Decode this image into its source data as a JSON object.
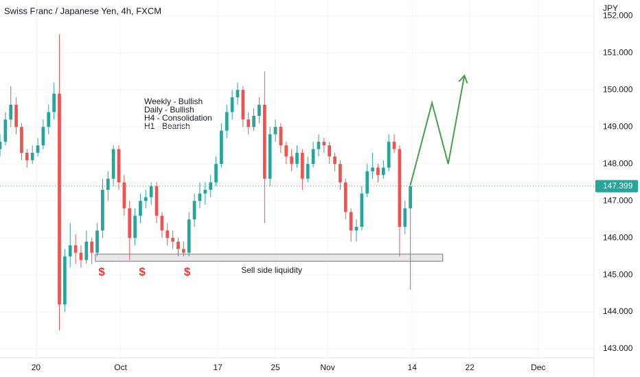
{
  "chart_data": {
    "type": "candlestick",
    "title": "Swiss Franc / Japanese Yen, 4h, FXCM",
    "currency": "JPY",
    "up_color": "#26a69a",
    "down_color": "#ef5350",
    "grid": true,
    "xlim": [
      0,
      330
    ],
    "ylim": [
      142.76,
      152.43
    ],
    "yticks": [
      {
        "value": 143,
        "label": "143.000"
      },
      {
        "value": 144,
        "label": "144.000"
      },
      {
        "value": 145,
        "label": "145.000"
      },
      {
        "value": 146,
        "label": "146.000"
      },
      {
        "value": 147,
        "label": "147.000"
      },
      {
        "value": 148,
        "label": "148.000"
      },
      {
        "value": 149,
        "label": "149.000"
      },
      {
        "value": 150,
        "label": "150.000"
      },
      {
        "value": 151,
        "label": "151.000"
      },
      {
        "value": 152,
        "label": "152.000"
      }
    ],
    "xticks": [
      {
        "value": 20,
        "label": "20"
      },
      {
        "value": 67,
        "label": "Oct"
      },
      {
        "value": 121,
        "label": "17"
      },
      {
        "value": 153,
        "label": "25"
      },
      {
        "value": 182,
        "label": "Nov"
      },
      {
        "value": 229,
        "label": "14"
      },
      {
        "value": 261,
        "label": "22"
      },
      {
        "value": 299,
        "label": "Dec"
      }
    ],
    "x": [
      0,
      3,
      6,
      9,
      12,
      15,
      18,
      21,
      24,
      27,
      30,
      33,
      36,
      39,
      42,
      45,
      48,
      51,
      54,
      57,
      60,
      63,
      66,
      69,
      72,
      75,
      78,
      81,
      84,
      87,
      90,
      93,
      96,
      99,
      102,
      105,
      108,
      111,
      114,
      117,
      120,
      123,
      126,
      129,
      132,
      135,
      138,
      141,
      144,
      147,
      150,
      153,
      156,
      159,
      162,
      165,
      168,
      171,
      174,
      177,
      180,
      183,
      186,
      189,
      192,
      195,
      198,
      201,
      204,
      207,
      210,
      213,
      216,
      219,
      222,
      225,
      228
    ],
    "open": [
      148.4,
      148.6,
      149.2,
      149.6,
      149.0,
      148.3,
      148.1,
      148.3,
      148.5,
      149.0,
      149.4,
      149.9,
      144.2,
      145.5,
      145.8,
      145.6,
      145.4,
      145.9,
      145.6,
      146.2,
      147.3,
      147.6,
      148.4,
      147.5,
      146.8,
      146.0,
      146.6,
      147.0,
      147.1,
      147.4,
      146.6,
      146.2,
      146.0,
      145.9,
      145.7,
      145.6,
      146.5,
      147.0,
      147.2,
      147.3,
      147.5,
      148.0,
      148.9,
      149.4,
      149.8,
      150.0,
      149.2,
      149.0,
      149.3,
      149.6,
      147.6,
      148.8,
      149.0,
      148.5,
      148.2,
      148.0,
      148.3,
      147.6,
      148.0,
      148.4,
      148.6,
      148.5,
      148.2,
      148.0,
      147.5,
      146.7,
      146.2,
      146.3,
      147.2,
      147.8,
      147.9,
      147.7,
      147.9,
      148.6,
      148.4,
      146.3,
      146.8
    ],
    "high": [
      148.8,
      149.4,
      150.1,
      149.8,
      149.1,
      148.4,
      148.5,
      148.7,
      149.2,
      149.6,
      150.2,
      151.5,
      145.7,
      146.4,
      146.1,
      145.8,
      146.2,
      146.0,
      146.4,
      147.6,
      147.8,
      148.5,
      148.5,
      147.7,
      147.0,
      146.8,
      147.2,
      147.3,
      147.5,
      147.5,
      146.7,
      146.4,
      146.2,
      146.0,
      145.9,
      146.7,
      147.2,
      147.5,
      147.5,
      147.7,
      148.2,
      149.1,
      149.6,
      150.0,
      150.2,
      150.1,
      149.4,
      149.5,
      149.8,
      150.5,
      149.0,
      149.2,
      149.1,
      148.6,
      148.4,
      148.5,
      148.4,
      148.2,
      148.6,
      148.8,
      148.7,
      148.6,
      148.3,
      148.1,
      147.6,
      146.8,
      146.5,
      147.4,
      148.0,
      148.3,
      148.0,
      148.1,
      148.8,
      148.8,
      148.5,
      147.0,
      147.5
    ],
    "low": [
      148.2,
      148.5,
      149.0,
      148.8,
      148.1,
      147.9,
      148.0,
      148.2,
      148.4,
      148.8,
      149.2,
      143.5,
      144.0,
      145.2,
      145.3,
      145.2,
      145.3,
      145.3,
      145.5,
      146.0,
      147.0,
      147.4,
      147.3,
      146.6,
      145.4,
      145.8,
      146.4,
      146.8,
      146.9,
      146.4,
      146.0,
      145.8,
      145.7,
      145.5,
      145.5,
      145.5,
      146.3,
      146.8,
      146.9,
      147.1,
      147.4,
      147.9,
      148.7,
      149.2,
      149.6,
      149.0,
      148.8,
      148.9,
      149.1,
      146.4,
      147.4,
      148.6,
      148.3,
      148.0,
      147.8,
      147.9,
      147.3,
      147.5,
      147.9,
      148.2,
      148.3,
      148.0,
      147.8,
      147.3,
      146.5,
      145.9,
      145.9,
      146.2,
      147.1,
      147.6,
      147.5,
      147.6,
      147.8,
      148.3,
      145.5,
      146.1,
      144.6
    ],
    "close": [
      148.6,
      149.2,
      149.6,
      149.0,
      148.3,
      148.1,
      148.3,
      148.5,
      149.0,
      149.4,
      149.9,
      144.2,
      145.5,
      145.8,
      145.6,
      145.4,
      145.9,
      145.6,
      146.2,
      147.3,
      147.6,
      148.4,
      147.5,
      146.8,
      146.0,
      146.6,
      147.0,
      147.1,
      147.4,
      146.6,
      146.2,
      146.0,
      145.9,
      145.7,
      145.6,
      146.5,
      147.0,
      147.2,
      147.3,
      147.5,
      148.0,
      148.9,
      149.4,
      149.8,
      150.0,
      149.2,
      149.0,
      149.3,
      149.6,
      147.6,
      148.8,
      149.0,
      148.5,
      148.2,
      148.0,
      148.3,
      147.6,
      148.0,
      148.4,
      148.6,
      148.5,
      148.2,
      148.0,
      147.5,
      146.7,
      146.2,
      146.3,
      147.2,
      147.8,
      147.9,
      147.7,
      147.9,
      148.6,
      148.4,
      146.3,
      146.8,
      147.4
    ],
    "last_price": {
      "value": 147.399,
      "label": "147.399"
    },
    "bias_notes": [
      "Weekly - Bullish",
      "Daily - Bullish",
      "H4 - Consolidation",
      "H1 - Bearish"
    ],
    "liquidity_zone": {
      "label": "Sell side liquidity",
      "x": [
        53,
        246
      ],
      "y": [
        145.37,
        145.56
      ],
      "label_x": 134,
      "label_y": 145.12
    },
    "liquidity_marks": [
      {
        "label": "$",
        "x": 56.5,
        "y": 145.07
      },
      {
        "label": "$",
        "x": 79,
        "y": 145.07
      },
      {
        "label": "$",
        "x": 104,
        "y": 145.07
      }
    ],
    "projection": {
      "color": "#43a047",
      "x": [
        228,
        240,
        249,
        258
      ],
      "y": [
        147.43,
        149.65,
        148.0,
        150.39
      ]
    }
  }
}
